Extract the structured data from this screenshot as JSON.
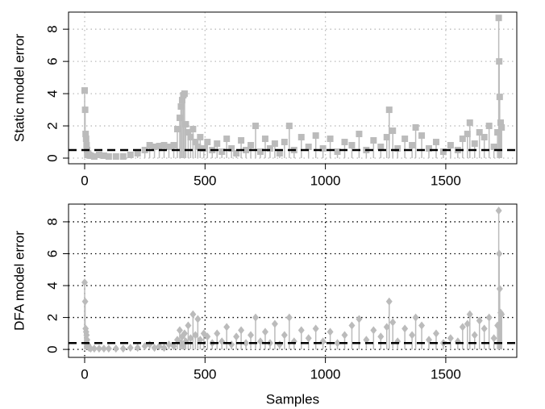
{
  "chart_data": [
    {
      "type": "scatter",
      "marker": "square",
      "color": "#bbbbbb",
      "ylabel": "Static model error",
      "xlim": [
        -67,
        1795
      ],
      "ylim": [
        -0.35,
        9.06
      ],
      "xticks": [
        0,
        500,
        1000,
        1500
      ],
      "yticks": [
        0,
        2,
        4,
        6,
        8
      ],
      "grid": true,
      "grid_color": "#bbbbbb",
      "hline": 0.5,
      "x": [
        0,
        2,
        4,
        6,
        8,
        10,
        14,
        18,
        25,
        40,
        60,
        80,
        100,
        130,
        160,
        190,
        220,
        250,
        270,
        290,
        310,
        330,
        350,
        370,
        385,
        395,
        400,
        405,
        410,
        415,
        420,
        430,
        440,
        450,
        460,
        470,
        480,
        495,
        510,
        530,
        550,
        570,
        590,
        610,
        630,
        650,
        670,
        690,
        710,
        730,
        750,
        770,
        790,
        810,
        830,
        850,
        870,
        900,
        930,
        960,
        990,
        1020,
        1050,
        1080,
        1110,
        1140,
        1170,
        1200,
        1230,
        1255,
        1265,
        1280,
        1300,
        1330,
        1360,
        1375,
        1400,
        1430,
        1460,
        1490,
        1520,
        1550,
        1570,
        1590,
        1600,
        1620,
        1640,
        1660,
        1680,
        1700,
        1715,
        1720,
        1722,
        1724,
        1728,
        1732
      ],
      "values": [
        4.2,
        3.0,
        1.5,
        1.2,
        0.8,
        0.5,
        0.3,
        0.2,
        0.15,
        0.1,
        0.2,
        0.15,
        0.1,
        0.1,
        0.1,
        0.2,
        0.3,
        0.5,
        0.8,
        0.7,
        0.75,
        0.8,
        0.7,
        0.8,
        1.8,
        2.5,
        3.2,
        3.6,
        3.9,
        4.0,
        2.1,
        1.6,
        1.3,
        1.8,
        1.0,
        0.7,
        1.3,
        0.6,
        1.0,
        0.5,
        0.9,
        0.4,
        1.2,
        0.6,
        0.3,
        1.1,
        0.5,
        0.8,
        2.0,
        0.4,
        1.2,
        0.6,
        0.9,
        0.3,
        1.0,
        2.0,
        0.5,
        1.3,
        0.7,
        1.4,
        0.6,
        1.2,
        0.4,
        1.0,
        0.8,
        1.5,
        0.5,
        1.1,
        0.7,
        1.3,
        3.0,
        1.7,
        0.6,
        1.2,
        0.8,
        1.9,
        1.4,
        0.6,
        1.0,
        0.4,
        0.8,
        0.5,
        1.2,
        1.5,
        2.2,
        0.9,
        1.6,
        1.3,
        2.0,
        0.7,
        1.6,
        8.7,
        6.0,
        3.8,
        2.2,
        1.9
      ]
    },
    {
      "type": "scatter",
      "marker": "diamond",
      "color": "#bbbbbb",
      "ylabel": "DFA model error",
      "xlabel": "Samples",
      "xlim": [
        -67,
        1795
      ],
      "ylim": [
        -0.5,
        9.11
      ],
      "xticks": [
        0,
        500,
        1000,
        1500
      ],
      "yticks": [
        0,
        2,
        4,
        6,
        8
      ],
      "grid": true,
      "grid_color": "#000000",
      "hline": 0.4,
      "x": [
        0,
        2,
        4,
        6,
        8,
        10,
        14,
        18,
        25,
        40,
        60,
        80,
        100,
        130,
        160,
        190,
        220,
        250,
        270,
        290,
        310,
        330,
        350,
        370,
        385,
        395,
        400,
        405,
        410,
        415,
        420,
        430,
        440,
        450,
        460,
        470,
        480,
        495,
        510,
        530,
        550,
        570,
        590,
        610,
        630,
        650,
        670,
        690,
        710,
        730,
        750,
        770,
        790,
        810,
        830,
        850,
        870,
        900,
        930,
        960,
        990,
        1020,
        1050,
        1080,
        1110,
        1140,
        1170,
        1200,
        1230,
        1255,
        1265,
        1280,
        1300,
        1330,
        1360,
        1375,
        1400,
        1430,
        1460,
        1490,
        1520,
        1550,
        1570,
        1590,
        1600,
        1620,
        1640,
        1660,
        1680,
        1700,
        1715,
        1720,
        1722,
        1724,
        1728,
        1732
      ],
      "values": [
        4.2,
        3.0,
        1.3,
        1.1,
        0.9,
        0.6,
        0.3,
        0.1,
        0.05,
        0.05,
        0.05,
        0.05,
        0.05,
        0.05,
        0.05,
        0.1,
        0.1,
        0.2,
        0.3,
        0.1,
        0.2,
        0.1,
        0.3,
        0.2,
        0.6,
        1.2,
        0.4,
        0.8,
        0.3,
        1.0,
        0.5,
        1.5,
        0.7,
        2.2,
        0.9,
        1.9,
        0.6,
        1.0,
        0.8,
        0.4,
        1.0,
        0.5,
        1.4,
        0.3,
        0.8,
        1.2,
        0.4,
        0.9,
        2.0,
        0.5,
        1.1,
        0.4,
        1.6,
        0.3,
        0.9,
        2.0,
        0.5,
        1.2,
        0.7,
        1.3,
        0.5,
        1.1,
        0.4,
        0.9,
        1.5,
        1.9,
        0.6,
        1.2,
        0.8,
        1.4,
        3.0,
        1.7,
        0.5,
        1.3,
        0.9,
        2.0,
        1.5,
        0.6,
        1.0,
        0.4,
        0.7,
        0.5,
        1.4,
        1.6,
        2.2,
        0.9,
        1.8,
        1.3,
        2.0,
        0.7,
        1.5,
        8.7,
        6.0,
        3.8,
        2.3,
        2.2
      ]
    }
  ]
}
